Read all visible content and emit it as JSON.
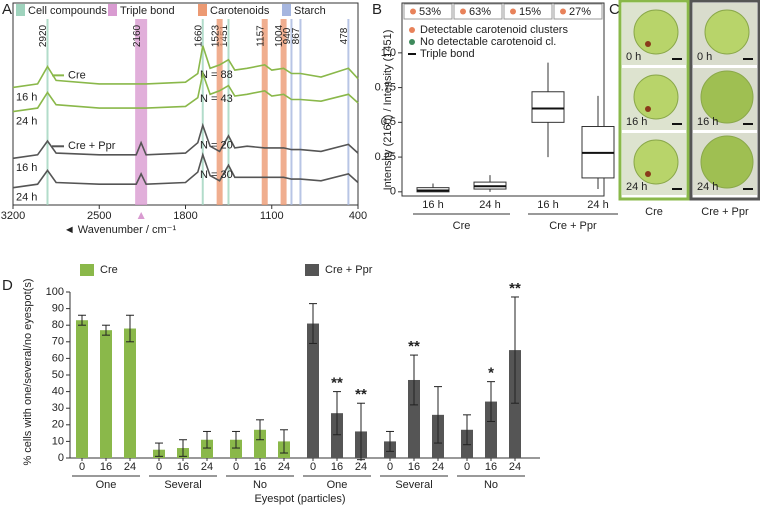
{
  "chart_data": [
    {
      "panel": "A",
      "type": "line",
      "xlabel": "◄ Wavenumber / cm⁻¹",
      "x": [
        3200,
        3000,
        2920,
        2850,
        2500,
        2200,
        2160,
        2120,
        1800,
        1700,
        1660,
        1600,
        1523,
        1451,
        1400,
        1300,
        1157,
        1100,
        1004,
        940,
        867,
        700,
        478,
        400
      ],
      "xlim": [
        3200,
        400
      ],
      "xticks": [
        3200,
        2500,
        1800,
        1100,
        400
      ],
      "ylim": [
        0,
        10
      ],
      "bands": [
        {
          "label": "Cell compounds",
          "color": "#9fd3bd",
          "peaks": [
            2920,
            1660,
            1451
          ]
        },
        {
          "label": "Triple bond",
          "color": "#d99bd1",
          "peaks": [
            2160
          ]
        },
        {
          "label": "Carotenoids",
          "color": "#ec9a73",
          "peaks": [
            1523,
            1157,
            1004
          ]
        },
        {
          "label": "Starch",
          "color": "#a6b6df",
          "peaks": [
            940,
            867,
            478
          ]
        }
      ],
      "groups": [
        {
          "name": "Cre",
          "color": "#8ab84a",
          "series": [
            {
              "label": "16 h",
              "n": "N = 88",
              "values": [
                6.8,
                7.0,
                8.0,
                7.2,
                7.0,
                7.0,
                7.0,
                7.0,
                7.1,
                7.6,
                9.2,
                7.9,
                8.1,
                8.4,
                7.8,
                7.9,
                8.1,
                7.8,
                7.9,
                7.6,
                7.6,
                7.4,
                7.9,
                7.3
              ]
            },
            {
              "label": "24 h",
              "n": "N = 43",
              "values": [
                5.4,
                5.6,
                6.5,
                5.8,
                5.6,
                5.6,
                5.6,
                5.6,
                5.7,
                6.2,
                7.6,
                6.4,
                6.6,
                6.9,
                6.3,
                6.4,
                6.6,
                6.3,
                6.4,
                6.1,
                6.1,
                6.0,
                6.4,
                5.9
              ]
            }
          ]
        },
        {
          "name": "Cre + Ppr",
          "color": "#555555",
          "series": [
            {
              "label": "16 h",
              "n": "N = 20",
              "values": [
                2.7,
                2.9,
                3.7,
                3.0,
                2.9,
                2.9,
                3.6,
                2.9,
                3.0,
                3.6,
                4.6,
                3.4,
                3.1,
                4.0,
                3.3,
                3.4,
                3.3,
                3.3,
                3.3,
                3.2,
                3.2,
                3.1,
                3.5,
                3.0
              ]
            },
            {
              "label": "24 h",
              "n": "N = 30",
              "values": [
                1.0,
                1.2,
                2.0,
                1.3,
                1.2,
                1.2,
                1.8,
                1.2,
                1.3,
                1.9,
                2.9,
                1.7,
                1.4,
                2.3,
                1.6,
                1.6,
                1.6,
                1.6,
                1.6,
                1.5,
                1.5,
                1.4,
                1.8,
                1.3
              ]
            }
          ]
        }
      ]
    },
    {
      "panel": "B",
      "type": "box",
      "ylabel": "Intensity (2160) / Intensity (1451)",
      "ylim": [
        -0.03,
        1.15
      ],
      "yticks": [
        0,
        0.25,
        0.5,
        0.75,
        {
          "value": 1,
          "label": "1.0"
        }
      ],
      "annotations": [
        "53%",
        "63%",
        "15%",
        "27%"
      ],
      "legend": [
        {
          "label": "Detectable carotenoid clusters",
          "color": "#e8825a"
        },
        {
          "label": "No detectable carotenoid cl.",
          "color": "#3f8a5c"
        },
        {
          "label": "Triple bond",
          "color": "#111111"
        }
      ],
      "groups": [
        {
          "label": "Cre",
          "categories": [
            "16 h",
            "24 h"
          ],
          "boxes": [
            {
              "min": 0,
              "q1": 0.0,
              "median": 0.01,
              "q3": 0.03,
              "max": 0.06
            },
            {
              "min": 0,
              "q1": 0.02,
              "median": 0.04,
              "q3": 0.07,
              "max": 0.12
            }
          ]
        },
        {
          "label": "Cre + Ppr",
          "categories": [
            "16 h",
            "24 h"
          ],
          "boxes": [
            {
              "min": 0.25,
              "q1": 0.5,
              "median": 0.6,
              "q3": 0.72,
              "max": 0.93
            },
            {
              "min": 0.02,
              "q1": 0.1,
              "median": 0.28,
              "q3": 0.47,
              "max": 0.69
            }
          ]
        }
      ]
    },
    {
      "panel": "D",
      "type": "bar",
      "ylabel": "% cells with one/several/no eyespot(s)",
      "xlabel": "Eyespot (particles)",
      "ylim": [
        0,
        100
      ],
      "yticks": [
        0,
        10,
        20,
        30,
        40,
        50,
        60,
        70,
        80,
        90,
        100
      ],
      "groups": [
        {
          "label": "One",
          "categories": [
            "0",
            "16",
            "24"
          ]
        },
        {
          "label": "Several",
          "categories": [
            "0",
            "16",
            "24"
          ]
        },
        {
          "label": "No",
          "categories": [
            "0",
            "16",
            "24"
          ]
        },
        {
          "label": "One",
          "categories": [
            "0",
            "16",
            "24"
          ]
        },
        {
          "label": "Several",
          "categories": [
            "0",
            "16",
            "24"
          ]
        },
        {
          "label": "No",
          "categories": [
            "0",
            "16",
            "24"
          ]
        }
      ],
      "series": [
        {
          "name": "Cre",
          "color": "#8ab84a",
          "values": [
            83,
            77,
            78,
            5,
            6,
            11,
            11,
            17,
            10,
            null,
            null,
            null,
            null,
            null,
            null,
            null,
            null,
            null
          ],
          "errors": [
            3,
            3,
            8,
            4,
            5,
            5,
            5,
            6,
            7,
            null,
            null,
            null,
            null,
            null,
            null,
            null,
            null,
            null
          ],
          "significance": [
            null,
            null,
            null,
            null,
            null,
            null,
            null,
            null,
            null,
            null,
            null,
            null,
            null,
            null,
            null,
            null,
            null,
            null
          ]
        },
        {
          "name": "Cre + Ppr",
          "color": "#555555",
          "values": [
            null,
            null,
            null,
            null,
            null,
            null,
            null,
            null,
            null,
            81,
            27,
            16,
            10,
            47,
            26,
            17,
            34,
            65
          ],
          "errors": [
            null,
            null,
            null,
            null,
            null,
            null,
            null,
            null,
            null,
            12,
            13,
            17,
            6,
            15,
            17,
            9,
            12,
            32
          ],
          "significance": [
            null,
            null,
            null,
            null,
            null,
            null,
            null,
            null,
            null,
            null,
            "**",
            "**",
            null,
            "**",
            null,
            null,
            "*",
            "**"
          ]
        }
      ]
    }
  ],
  "micrographs": {
    "panel": "C",
    "columns": [
      {
        "label": "Cre",
        "color": "#8ab84a",
        "frames": [
          "0 h",
          "16 h",
          "24 h"
        ]
      },
      {
        "label": "Cre + Ppr",
        "color": "#555555",
        "frames": [
          "0 h",
          "16 h",
          "24 h"
        ]
      }
    ]
  }
}
